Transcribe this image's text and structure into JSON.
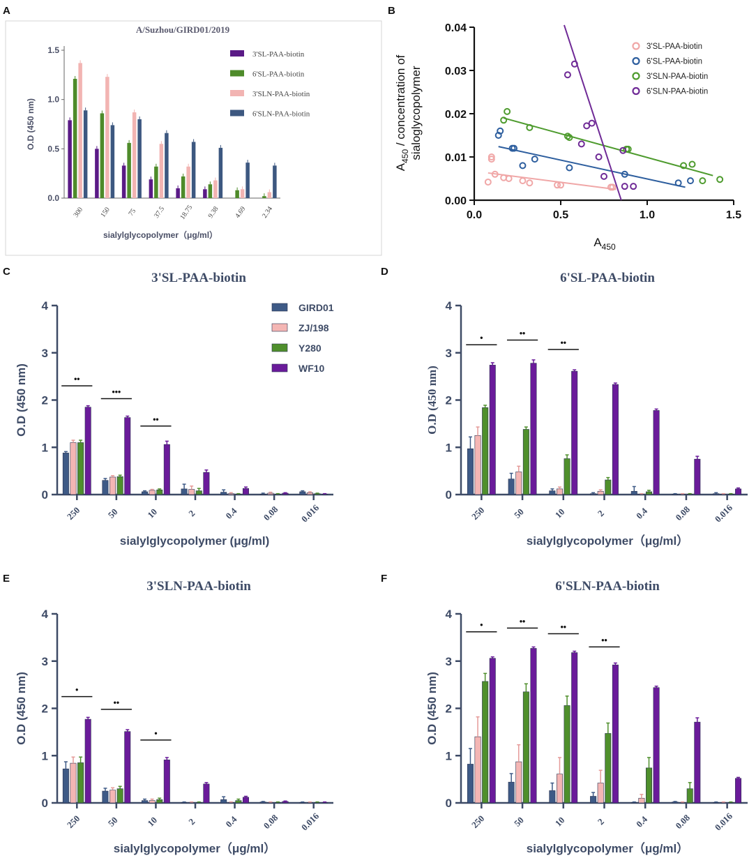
{
  "panel_labels": {
    "a": "A",
    "b": "B",
    "c": "C",
    "d": "D",
    "e": "E",
    "f": "F"
  },
  "colors": {
    "a_series": [
      "#5a1a86",
      "#4e8b2a",
      "#f2b4b2",
      "#3d5880"
    ],
    "b_series": [
      "#f0a7a7",
      "#2d5e9e",
      "#4e9b2e",
      "#6f2a96"
    ],
    "strain": [
      "#3e5a86",
      "#f4b6b4",
      "#4f8f2c",
      "#6a1b9a"
    ],
    "axis": "#3e4b66"
  },
  "chart_data": [
    {
      "id": "A",
      "type": "bar",
      "title": "A/Suzhou/GIRD01/2019",
      "xlabel": "sialylglycopolymer（μg/ml）",
      "ylabel": "O.D (450 nm)",
      "ylim": [
        0,
        1.5
      ],
      "yticks": [
        "0.0",
        "0.5",
        "1.0",
        "1.5"
      ],
      "categories": [
        "300",
        "150",
        "75",
        "37.5",
        "18.75",
        "9.38",
        "4.69",
        "2.34"
      ],
      "series": [
        {
          "name": "3'SL-PAA-biotin",
          "values": [
            0.79,
            0.5,
            0.33,
            0.19,
            0.1,
            0.09,
            0.0,
            0.0
          ]
        },
        {
          "name": "6'SL-PAA-biotin",
          "values": [
            1.21,
            0.86,
            0.56,
            0.32,
            0.22,
            0.14,
            0.08,
            0.02
          ]
        },
        {
          "name": "3'SLN-PAA-biotin",
          "values": [
            1.37,
            1.23,
            0.87,
            0.55,
            0.32,
            0.18,
            0.09,
            0.06
          ]
        },
        {
          "name": "6'SLN-PAA-biotin",
          "values": [
            0.89,
            0.74,
            0.8,
            0.66,
            0.57,
            0.51,
            0.36,
            0.33
          ]
        }
      ],
      "legend": "top-right"
    },
    {
      "id": "B",
      "type": "scatter",
      "xlabel": "A",
      "xlabel_sub": "450",
      "ylabel_line1_main": "A",
      "ylabel_line1_sub": "450",
      "ylabel_line1_rest": " / concentration of",
      "ylabel_line2": "sialoglycopolymer",
      "xlim": [
        0,
        1.5
      ],
      "ylim": [
        0,
        0.04
      ],
      "xticks": [
        "0.0",
        "0.5",
        "1.0",
        "1.5"
      ],
      "yticks": [
        "0.00",
        "0.01",
        "0.02",
        "0.03",
        "0.04"
      ],
      "legend": "top-right",
      "series": [
        {
          "name": "3'SL-PAA-biotin",
          "x": [
            0.08,
            0.1,
            0.1,
            0.12,
            0.17,
            0.2,
            0.28,
            0.32,
            0.48,
            0.5,
            0.79,
            0.8
          ],
          "y": [
            0.0042,
            0.0095,
            0.01,
            0.006,
            0.0052,
            0.005,
            0.0045,
            0.004,
            0.0035,
            0.0035,
            0.003,
            0.003
          ],
          "fit": [
            [
              0.08,
              0.0063
            ],
            [
              0.82,
              0.0025
            ]
          ]
        },
        {
          "name": "6'SL-PAA-biotin",
          "x": [
            0.14,
            0.15,
            0.22,
            0.23,
            0.28,
            0.35,
            0.55,
            0.87,
            1.18,
            1.25
          ],
          "y": [
            0.015,
            0.016,
            0.012,
            0.012,
            0.008,
            0.0095,
            0.0075,
            0.006,
            0.004,
            0.0045
          ],
          "fit": [
            [
              0.14,
              0.0124
            ],
            [
              1.22,
              0.003
            ]
          ]
        },
        {
          "name": "3'SLN-PAA-biotin",
          "x": [
            0.17,
            0.19,
            0.32,
            0.54,
            0.55,
            0.88,
            0.89,
            1.21,
            1.26,
            1.32,
            1.42
          ],
          "y": [
            0.0185,
            0.0205,
            0.0168,
            0.0148,
            0.0145,
            0.0118,
            0.0118,
            0.008,
            0.0083,
            0.0045,
            0.0048
          ],
          "fit": [
            [
              0.17,
              0.019
            ],
            [
              1.38,
              0.0057
            ]
          ]
        },
        {
          "name": "6'SLN-PAA-biotin",
          "x": [
            0.54,
            0.58,
            0.62,
            0.65,
            0.68,
            0.72,
            0.75,
            0.86,
            0.87,
            0.92
          ],
          "y": [
            0.029,
            0.0315,
            0.013,
            0.0172,
            0.0178,
            0.01,
            0.0055,
            0.0115,
            0.0032,
            0.0032
          ],
          "fit": [
            [
              0.52,
              0.0405
            ],
            [
              0.85,
              0.0
            ]
          ]
        }
      ]
    },
    {
      "id": "C",
      "type": "bar",
      "title": "3'SL-PAA-biotin",
      "xlabel": "sialylglycopolymer (μg/ml)",
      "ylabel": "O.D (450 nm)",
      "ylim": [
        0,
        4
      ],
      "yticks": [
        "0",
        "1",
        "2",
        "3",
        "4"
      ],
      "categories": [
        "250",
        "50",
        "10",
        "2",
        "0.4",
        "0.08",
        "0.016"
      ],
      "legend": "top-right",
      "series": [
        {
          "name": "GIRD01",
          "values": [
            0.88,
            0.3,
            0.06,
            0.12,
            0.05,
            0.01,
            0.06
          ],
          "err": [
            0.03,
            0.04,
            0.02,
            0.1,
            0.05,
            0.02,
            0.02
          ]
        },
        {
          "name": "ZJ/198",
          "values": [
            1.1,
            0.37,
            0.09,
            0.11,
            0.02,
            0.03,
            0.04
          ],
          "err": [
            0.05,
            0.03,
            0.02,
            0.07,
            0.02,
            0.02,
            0.02
          ]
        },
        {
          "name": "Y280",
          "values": [
            1.1,
            0.38,
            0.1,
            0.08,
            0.01,
            0.01,
            0.02
          ],
          "err": [
            0.05,
            0.03,
            0.02,
            0.05,
            0.01,
            0.01,
            0.01
          ]
        },
        {
          "name": "WF10",
          "values": [
            1.85,
            1.63,
            1.06,
            0.47,
            0.13,
            0.03,
            0.01
          ],
          "err": [
            0.03,
            0.03,
            0.07,
            0.05,
            0.03,
            0.01,
            0.01
          ]
        }
      ],
      "significance": [
        {
          "group": 0,
          "label": "••",
          "level": 2.3
        },
        {
          "group": 1,
          "label": "•••",
          "level": 2.03
        },
        {
          "group": 2,
          "label": "••",
          "level": 1.45
        }
      ]
    },
    {
      "id": "D",
      "type": "bar",
      "title": "6'SL-PAA-biotin",
      "xlabel": "sialylglycopolymer（μg/ml）",
      "ylabel": "O.D (450 nm)",
      "ylim": [
        0,
        4
      ],
      "yticks": [
        "0",
        "1",
        "2",
        "3",
        "4"
      ],
      "categories": [
        "250",
        "50",
        "10",
        "2",
        "0.4",
        "0.08",
        "0.016"
      ],
      "series": [
        {
          "name": "GIRD01",
          "values": [
            0.97,
            0.33,
            0.08,
            0.02,
            0.07,
            0.01,
            0.02
          ],
          "err": [
            0.25,
            0.12,
            0.04,
            0.02,
            0.1,
            0.01,
            0.02
          ]
        },
        {
          "name": "ZJ/198",
          "values": [
            1.25,
            0.48,
            0.12,
            0.07,
            0.01,
            0.01,
            0.01
          ],
          "err": [
            0.18,
            0.12,
            0.04,
            0.03,
            0.01,
            0.01,
            0.01
          ]
        },
        {
          "name": "Y280",
          "values": [
            1.84,
            1.38,
            0.76,
            0.31,
            0.06,
            0.01,
            0.01
          ],
          "err": [
            0.05,
            0.05,
            0.08,
            0.05,
            0.03,
            0.01,
            0.01
          ]
        },
        {
          "name": "WF10",
          "values": [
            2.74,
            2.78,
            2.61,
            2.33,
            1.78,
            0.75,
            0.12
          ],
          "err": [
            0.05,
            0.07,
            0.03,
            0.03,
            0.03,
            0.06,
            0.02
          ]
        }
      ],
      "significance": [
        {
          "group": 0,
          "label": "•",
          "level": 3.17
        },
        {
          "group": 1,
          "label": "••",
          "level": 3.27
        },
        {
          "group": 2,
          "label": "••",
          "level": 3.07
        }
      ]
    },
    {
      "id": "E",
      "type": "bar",
      "title": "3'SLN-PAA-biotin",
      "xlabel": "sialylglycopolymer（μg/ml）",
      "ylabel": "O.D (450 nm)",
      "ylim": [
        0,
        4
      ],
      "yticks": [
        "0",
        "1",
        "2",
        "3",
        "4"
      ],
      "categories": [
        "250",
        "50",
        "10",
        "2",
        "0.4",
        "0.08",
        "0.016"
      ],
      "series": [
        {
          "name": "GIRD01",
          "values": [
            0.72,
            0.25,
            0.05,
            0.01,
            0.07,
            0.02,
            0.01
          ],
          "err": [
            0.15,
            0.06,
            0.03,
            0.01,
            0.06,
            0.01,
            0.01
          ]
        },
        {
          "name": "ZJ/198",
          "values": [
            0.84,
            0.27,
            0.05,
            0.01,
            0.01,
            0.01,
            0.01
          ],
          "err": [
            0.13,
            0.05,
            0.03,
            0.01,
            0.01,
            0.01,
            0.01
          ]
        },
        {
          "name": "Y280",
          "values": [
            0.85,
            0.3,
            0.07,
            0.01,
            0.05,
            0.01,
            0.01
          ],
          "err": [
            0.12,
            0.05,
            0.03,
            0.01,
            0.03,
            0.01,
            0.01
          ]
        },
        {
          "name": "WF10",
          "values": [
            1.77,
            1.51,
            0.91,
            0.4,
            0.12,
            0.03,
            0.01
          ],
          "err": [
            0.04,
            0.04,
            0.05,
            0.03,
            0.02,
            0.01,
            0.01
          ]
        }
      ],
      "significance": [
        {
          "group": 0,
          "label": "•",
          "level": 2.25
        },
        {
          "group": 1,
          "label": "••",
          "level": 1.98
        },
        {
          "group": 2,
          "label": "•",
          "level": 1.33
        }
      ]
    },
    {
      "id": "F",
      "type": "bar",
      "title": "6'SLN-PAA-biotin",
      "xlabel": "sialylglycopolymer（μg/ml）",
      "ylabel": "O.D (450 nm)",
      "ylim": [
        0,
        4
      ],
      "yticks": [
        "0",
        "1",
        "2",
        "3",
        "4"
      ],
      "categories": [
        "250",
        "50",
        "10",
        "2",
        "0.4",
        "0.08",
        "0.016"
      ],
      "series": [
        {
          "name": "GIRD01",
          "values": [
            0.82,
            0.44,
            0.26,
            0.14,
            0.01,
            0.02,
            0.01
          ],
          "err": [
            0.33,
            0.18,
            0.16,
            0.08,
            0.01,
            0.01,
            0.01
          ]
        },
        {
          "name": "ZJ/198",
          "values": [
            1.4,
            0.87,
            0.61,
            0.42,
            0.1,
            0.01,
            0.01
          ],
          "err": [
            0.42,
            0.36,
            0.35,
            0.27,
            0.08,
            0.01,
            0.01
          ]
        },
        {
          "name": "Y280",
          "values": [
            2.57,
            2.35,
            2.06,
            1.47,
            0.74,
            0.3,
            0.01
          ],
          "err": [
            0.17,
            0.17,
            0.2,
            0.22,
            0.22,
            0.13,
            0.01
          ]
        },
        {
          "name": "WF10",
          "values": [
            3.06,
            3.27,
            3.18,
            2.92,
            2.44,
            1.71,
            0.52
          ],
          "err": [
            0.03,
            0.03,
            0.03,
            0.04,
            0.03,
            0.09,
            0.02
          ]
        }
      ],
      "significance": [
        {
          "group": 0,
          "label": "•",
          "level": 3.62
        },
        {
          "group": 1,
          "label": "••",
          "level": 3.7
        },
        {
          "group": 2,
          "label": "••",
          "level": 3.58
        },
        {
          "group": 3,
          "label": "••",
          "level": 3.3
        }
      ]
    }
  ]
}
